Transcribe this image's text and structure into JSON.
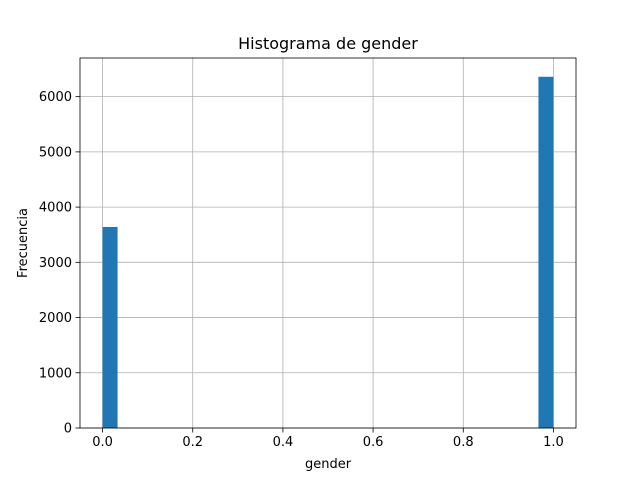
{
  "chart_data": {
    "type": "bar",
    "title": "Histograma de gender",
    "xlabel": "gender",
    "ylabel": "Frecuencia",
    "xlim": [
      -0.05,
      1.05
    ],
    "ylim": [
      0,
      6700
    ],
    "xticks": [
      0.0,
      0.2,
      0.4,
      0.6,
      0.8,
      1.0
    ],
    "xtick_labels": [
      "0.0",
      "0.2",
      "0.4",
      "0.6",
      "0.8",
      "1.0"
    ],
    "yticks": [
      0,
      1000,
      2000,
      3000,
      4000,
      5000,
      6000
    ],
    "ytick_labels": [
      "0",
      "1000",
      "2000",
      "3000",
      "4000",
      "5000",
      "6000"
    ],
    "grid": true,
    "bin_width": 0.0333,
    "bars": [
      {
        "x": 0.0,
        "value": 3640
      },
      {
        "x": 0.9667,
        "value": 6360
      }
    ],
    "bar_color": "#1f77b4"
  }
}
